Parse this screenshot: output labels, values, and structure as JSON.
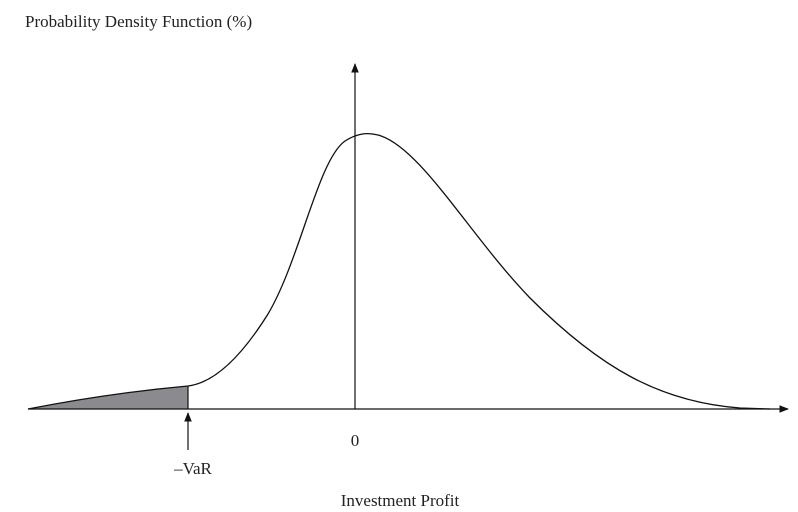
{
  "y_axis_label": "Probability Density Function (%)",
  "zero_label": "0",
  "var_label": "–VaR",
  "x_axis_label": "Investment Profit"
}
